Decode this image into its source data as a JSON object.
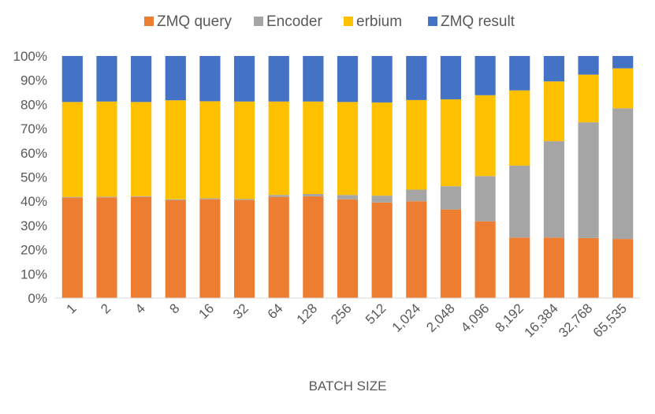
{
  "chart_data": {
    "type": "bar",
    "stacked": true,
    "percent": true,
    "title": "",
    "xlabel": "BATCH SIZE",
    "ylabel": "",
    "ylim": [
      0,
      100
    ],
    "yticks": [
      "0%",
      "10%",
      "20%",
      "30%",
      "40%",
      "50%",
      "60%",
      "70%",
      "80%",
      "90%",
      "100%"
    ],
    "legend_position": "top",
    "categories": [
      "1",
      "2",
      "4",
      "8",
      "16",
      "32",
      "64",
      "128",
      "256",
      "512",
      "1,024",
      "2,048",
      "4,096",
      "8,192",
      "16,384",
      "32,768",
      "65,535"
    ],
    "series": [
      {
        "name": "ZMQ query",
        "color": "#ED7D31",
        "values": [
          41.5,
          41.6,
          41.8,
          40.4,
          40.8,
          40.5,
          41.8,
          42.0,
          40.8,
          39.5,
          40.0,
          36.6,
          31.7,
          25.0,
          25.0,
          24.8,
          24.4
        ]
      },
      {
        "name": "Encoder",
        "color": "#A5A5A5",
        "values": [
          0.3,
          0.3,
          0.3,
          0.4,
          0.4,
          0.4,
          0.8,
          1.0,
          1.8,
          2.8,
          4.8,
          9.6,
          18.7,
          29.7,
          39.8,
          47.8,
          54.0
        ]
      },
      {
        "name": "erbium",
        "color": "#FFC000",
        "values": [
          39.2,
          39.3,
          38.9,
          40.9,
          40.1,
          40.3,
          38.6,
          38.2,
          38.4,
          38.5,
          37.0,
          35.9,
          33.4,
          31.1,
          24.7,
          19.7,
          16.5
        ]
      },
      {
        "name": "ZMQ result",
        "color": "#4472C4",
        "values": [
          19.0,
          18.8,
          19.0,
          18.3,
          18.7,
          18.8,
          18.8,
          18.8,
          19.0,
          19.2,
          18.2,
          17.9,
          16.2,
          14.2,
          10.5,
          7.7,
          5.1
        ]
      }
    ]
  }
}
